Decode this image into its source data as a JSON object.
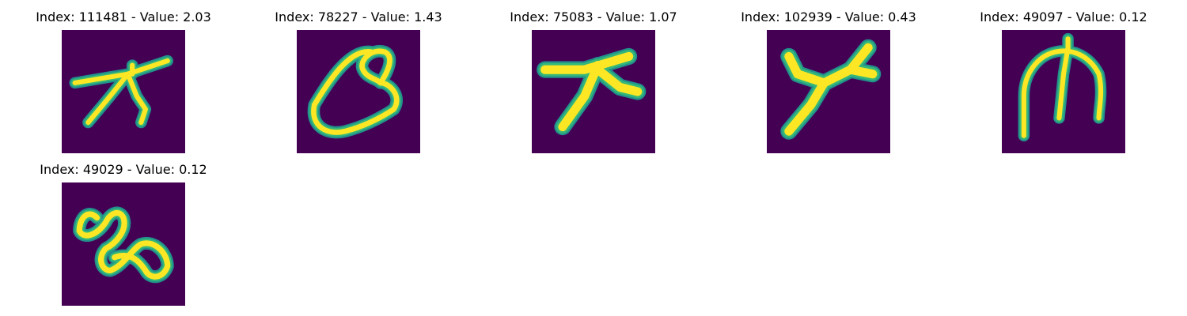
{
  "colors": {
    "background": "#440154",
    "stroke_core": "#fde725",
    "stroke_edge": "#35b779",
    "stroke_outer": "#21918c"
  },
  "panels": [
    {
      "title": "Index: 111481 - Value: 2.03"
    },
    {
      "title": "Index: 78227 - Value: 1.43"
    },
    {
      "title": "Index: 75083 - Value: 1.07"
    },
    {
      "title": "Index: 102939 - Value: 0.43"
    },
    {
      "title": "Index: 49097 - Value: 0.12"
    },
    {
      "title": "Index: 49029 - Value: 0.12"
    }
  ]
}
